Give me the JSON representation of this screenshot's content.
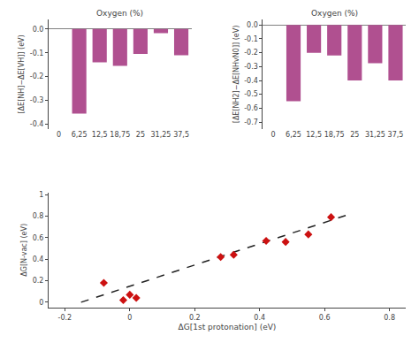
{
  "chart_data": [
    {
      "type": "bar",
      "title": "Oxygen (%)",
      "y_label": "[ΔE[NH]−ΔE[VH]] (eV)",
      "categories": [
        "0",
        "6,25",
        "12,5",
        "18,75",
        "25",
        "31,25",
        "37,5"
      ],
      "values": [
        0.0,
        -0.355,
        -0.14,
        -0.155,
        -0.105,
        -0.018,
        -0.11
      ],
      "color": "#b05090",
      "ylim": [
        -0.42,
        0.04
      ],
      "yticks": [
        -0.4,
        -0.3,
        -0.2,
        -0.1,
        {
          "value": 0.0,
          "label": "0.0"
        }
      ],
      "grid": false
    },
    {
      "type": "bar",
      "title": "Oxygen (%)",
      "y_label": "[ΔE[NH2]−ΔE[NHvN0]] (eV)",
      "categories": [
        "0",
        "6,25",
        "12,5",
        "18,75",
        "25",
        "31,25",
        "37,5"
      ],
      "values": [
        0.0,
        -0.55,
        -0.2,
        -0.22,
        -0.4,
        -0.275,
        -0.4
      ],
      "color": "#b05090",
      "ylim": [
        -0.75,
        0.04
      ],
      "yticks": [
        -0.7,
        -0.6,
        -0.5,
        -0.4,
        -0.3,
        -0.2,
        -0.1,
        {
          "value": 0.0,
          "label": "0.0"
        }
      ],
      "grid": false
    },
    {
      "type": "scatter",
      "x_label": "ΔG[1st protonation] (eV)",
      "y_label": "ΔG[N-vac] (eV)",
      "series": [
        {
          "type": "line",
          "color": "#222222",
          "line_style": "dashed",
          "x": [
            -0.15,
            0.68
          ],
          "values": [
            0.0,
            0.82
          ]
        },
        {
          "type": "scatter",
          "color": "#cc1111",
          "marker": "diamond",
          "x": [
            -0.08,
            -0.02,
            0.0,
            0.02,
            0.28,
            0.32,
            0.42,
            0.48,
            0.55,
            0.62
          ],
          "values": [
            0.18,
            0.02,
            0.07,
            0.04,
            0.42,
            0.44,
            0.57,
            0.56,
            0.63,
            0.79
          ]
        }
      ],
      "xlim": [
        -0.25,
        0.85
      ],
      "ylim": [
        -0.05,
        1.02
      ],
      "xticks": [
        -0.2,
        0,
        0.2,
        0.4,
        0.6,
        0.8
      ],
      "yticks": [
        0,
        0.2,
        0.4,
        0.6,
        0.8,
        1
      ],
      "grid": false
    }
  ]
}
